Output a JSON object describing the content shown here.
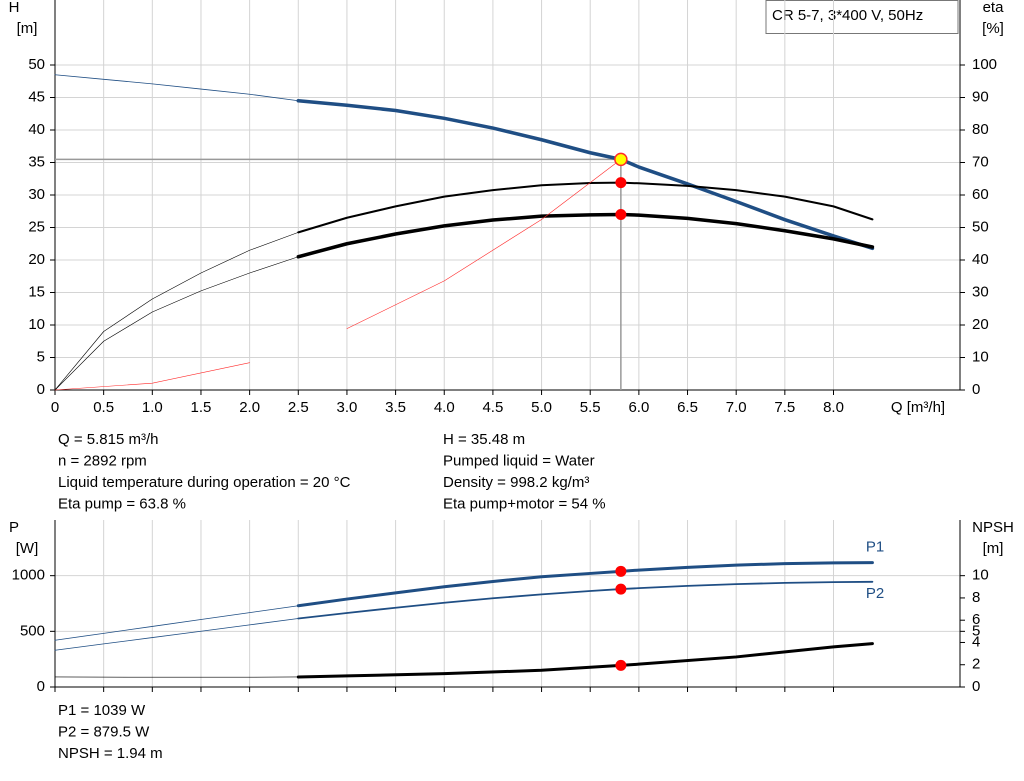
{
  "chart_data": [
    {
      "type": "line",
      "title": "CR 5-7, 3*400 V, 50Hz",
      "xlabel": "Q [m³/h]",
      "ylabel": "H",
      "yunit": "[m]",
      "y2label": "eta",
      "y2unit": "[%]",
      "xlim": [
        0,
        9.3
      ],
      "xticks": [
        0,
        0.5,
        {
          "value": 1,
          "label": "1.0"
        },
        1.5,
        {
          "value": 2,
          "label": "2.0"
        },
        2.5,
        {
          "value": 3,
          "label": "3.0"
        },
        3.5,
        {
          "value": 4,
          "label": "4.0"
        },
        4.5,
        {
          "value": 5,
          "label": "5.0"
        },
        5.5,
        {
          "value": 6,
          "label": "6.0"
        },
        6.5,
        {
          "value": 7,
          "label": "7.0"
        },
        7.5,
        {
          "value": 8,
          "label": "8.0"
        }
      ],
      "ylim": [
        0,
        60
      ],
      "yticks": [
        0,
        5,
        10,
        15,
        20,
        25,
        30,
        35,
        40,
        45,
        50
      ],
      "y2lim": [
        0,
        120
      ],
      "y2ticks": [
        0,
        10,
        20,
        30,
        40,
        50,
        60,
        70,
        80,
        90,
        100
      ],
      "grid": true,
      "thick_from_x": 2.5,
      "marker_x": 5.815,
      "series": [
        {
          "color": "#1f4e84",
          "line_width": [
            0.8,
            3.5
          ],
          "marker_fill": "#ffff00",
          "x": [
            0,
            0.5,
            1,
            1.5,
            2,
            2.5,
            3,
            3.5,
            4,
            4.5,
            5,
            5.5,
            5.815,
            6,
            6.5,
            7,
            7.5,
            8,
            8.4
          ],
          "values": [
            48.5,
            47.8,
            47.1,
            46.3,
            45.5,
            44.5,
            43.8,
            43,
            41.8,
            40.3,
            38.5,
            36.5,
            35.48,
            34.3,
            31.7,
            29,
            26.2,
            23.7,
            21.8
          ]
        },
        {
          "axis": "y2",
          "color": "#000000",
          "line_width": [
            0.6,
            2
          ],
          "x": [
            0,
            0.5,
            1,
            1.5,
            2,
            2.5,
            3,
            3.5,
            4,
            4.5,
            5,
            5.5,
            5.815,
            6,
            6.5,
            7,
            7.5,
            8,
            8.4
          ],
          "values": [
            0,
            18,
            28,
            36,
            43,
            48.5,
            53,
            56.5,
            59.5,
            61.5,
            63,
            63.7,
            63.8,
            63.6,
            62.8,
            61.5,
            59.5,
            56.5,
            52.5
          ]
        },
        {
          "axis": "y2",
          "color": "#000000",
          "line_width": [
            0.6,
            3.5
          ],
          "x": [
            0,
            0.5,
            1,
            1.5,
            2,
            2.5,
            3,
            3.5,
            4,
            4.5,
            5,
            5.5,
            5.815,
            6,
            6.5,
            7,
            7.5,
            8,
            8.4
          ],
          "values": [
            0,
            15,
            24,
            30.5,
            36,
            41,
            45,
            48,
            50.5,
            52.3,
            53.5,
            53.9,
            54,
            53.8,
            52.8,
            51.2,
            49,
            46.5,
            44
          ]
        },
        {
          "color": "#ff2a2a",
          "line_width": [
            0.6,
            0.6
          ],
          "x": [
            0,
            1,
            2,
            3,
            4,
            5,
            5.815
          ],
          "values": [
            0,
            1.05,
            4.2,
            9.44,
            16.79,
            26.23,
            35.48
          ]
        }
      ],
      "annotations": [
        [
          "Q = 5.815 m³/h",
          "n = 2892 rpm",
          "Liquid temperature during operation = 20 °C",
          "Eta pump = 63.8 %"
        ],
        [
          "H = 35.48 m",
          "Pumped liquid = Water",
          "Density = 998.2 kg/m³",
          "Eta pump+motor = 54 %"
        ]
      ]
    },
    {
      "type": "line",
      "ylabel": "P",
      "yunit": "[W]",
      "y2label": "NPSH",
      "y2unit": "[m]",
      "xlim": [
        0,
        9.3
      ],
      "ylim": [
        0,
        1500
      ],
      "yticks": [
        0,
        500,
        1000
      ],
      "y2lim": [
        0,
        15
      ],
      "y2ticks": [
        0,
        2,
        4,
        5,
        6,
        8,
        10
      ],
      "grid": true,
      "thick_from_x": 2.5,
      "marker_x": 5.815,
      "series": [
        {
          "name": "P1",
          "color": "#1f4e84",
          "line_width": [
            0.8,
            3
          ],
          "x": [
            0,
            0.5,
            1,
            1.5,
            2,
            2.5,
            3,
            3.5,
            4,
            4.5,
            5,
            5.5,
            5.815,
            6,
            6.5,
            7,
            7.5,
            8,
            8.4
          ],
          "values": [
            420,
            482,
            544,
            606,
            668,
            730,
            790,
            845,
            900,
            948,
            990,
            1020,
            1039,
            1050,
            1075,
            1095,
            1108,
            1115,
            1117
          ]
        },
        {
          "name": "P2",
          "color": "#1f4e84",
          "line_width": [
            0.8,
            1.8
          ],
          "x": [
            0,
            0.5,
            1,
            1.5,
            2,
            2.5,
            3,
            3.5,
            4,
            4.5,
            5,
            5.5,
            5.815,
            6,
            6.5,
            7,
            7.5,
            8,
            8.4
          ],
          "values": [
            330,
            387,
            444,
            501,
            558,
            615,
            665,
            712,
            757,
            797,
            832,
            862,
            879.5,
            888,
            908,
            924,
            935,
            942,
            945
          ]
        },
        {
          "axis": "y2",
          "color": "#000000",
          "line_width": [
            0.6,
            3
          ],
          "x": [
            0,
            1,
            2,
            2.5,
            3,
            4,
            5,
            5.815,
            6,
            7,
            8,
            8.4
          ],
          "values": [
            0.9,
            0.88,
            0.88,
            0.9,
            1,
            1.2,
            1.5,
            1.94,
            2.05,
            2.7,
            3.6,
            3.9
          ]
        }
      ],
      "annotations": [
        [
          "P1 = 1039 W",
          "P2 = 879.5 W",
          "NPSH = 1.94 m"
        ]
      ]
    }
  ]
}
